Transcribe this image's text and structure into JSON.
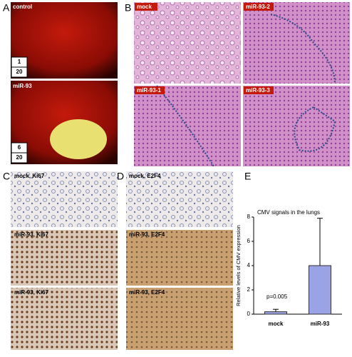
{
  "panels": {
    "a": {
      "label": "A",
      "images": [
        {
          "caption": "control",
          "num": "1",
          "den": "20"
        },
        {
          "caption": "miR-93",
          "num": "6",
          "den": "20"
        }
      ]
    },
    "b": {
      "label": "B",
      "images": [
        "mock",
        "miR-93-2",
        "miR-93-1",
        "miR-93-3"
      ]
    },
    "c": {
      "label": "C",
      "images": [
        "mock, Ki67",
        "miR-93, Ki67",
        "miR-93, Ki67"
      ]
    },
    "d": {
      "label": "D",
      "images": [
        "mock, E2F4",
        "miR-93, E2F4",
        "miR-93, E2F4"
      ]
    },
    "e": {
      "label": "E"
    }
  },
  "chart_data": {
    "type": "bar",
    "title": "CMV signals in the lungs",
    "y_label": "Relative levels of CMV expression",
    "categories": [
      "mock",
      "miR-93"
    ],
    "values": [
      0.2,
      4
    ],
    "errors": [
      0.2,
      3.9
    ],
    "color": "#9aa3e6",
    "annotation": "p=0.005",
    "ylim": [
      0,
      8
    ],
    "yticks": [
      0,
      2,
      4,
      6,
      8
    ]
  }
}
